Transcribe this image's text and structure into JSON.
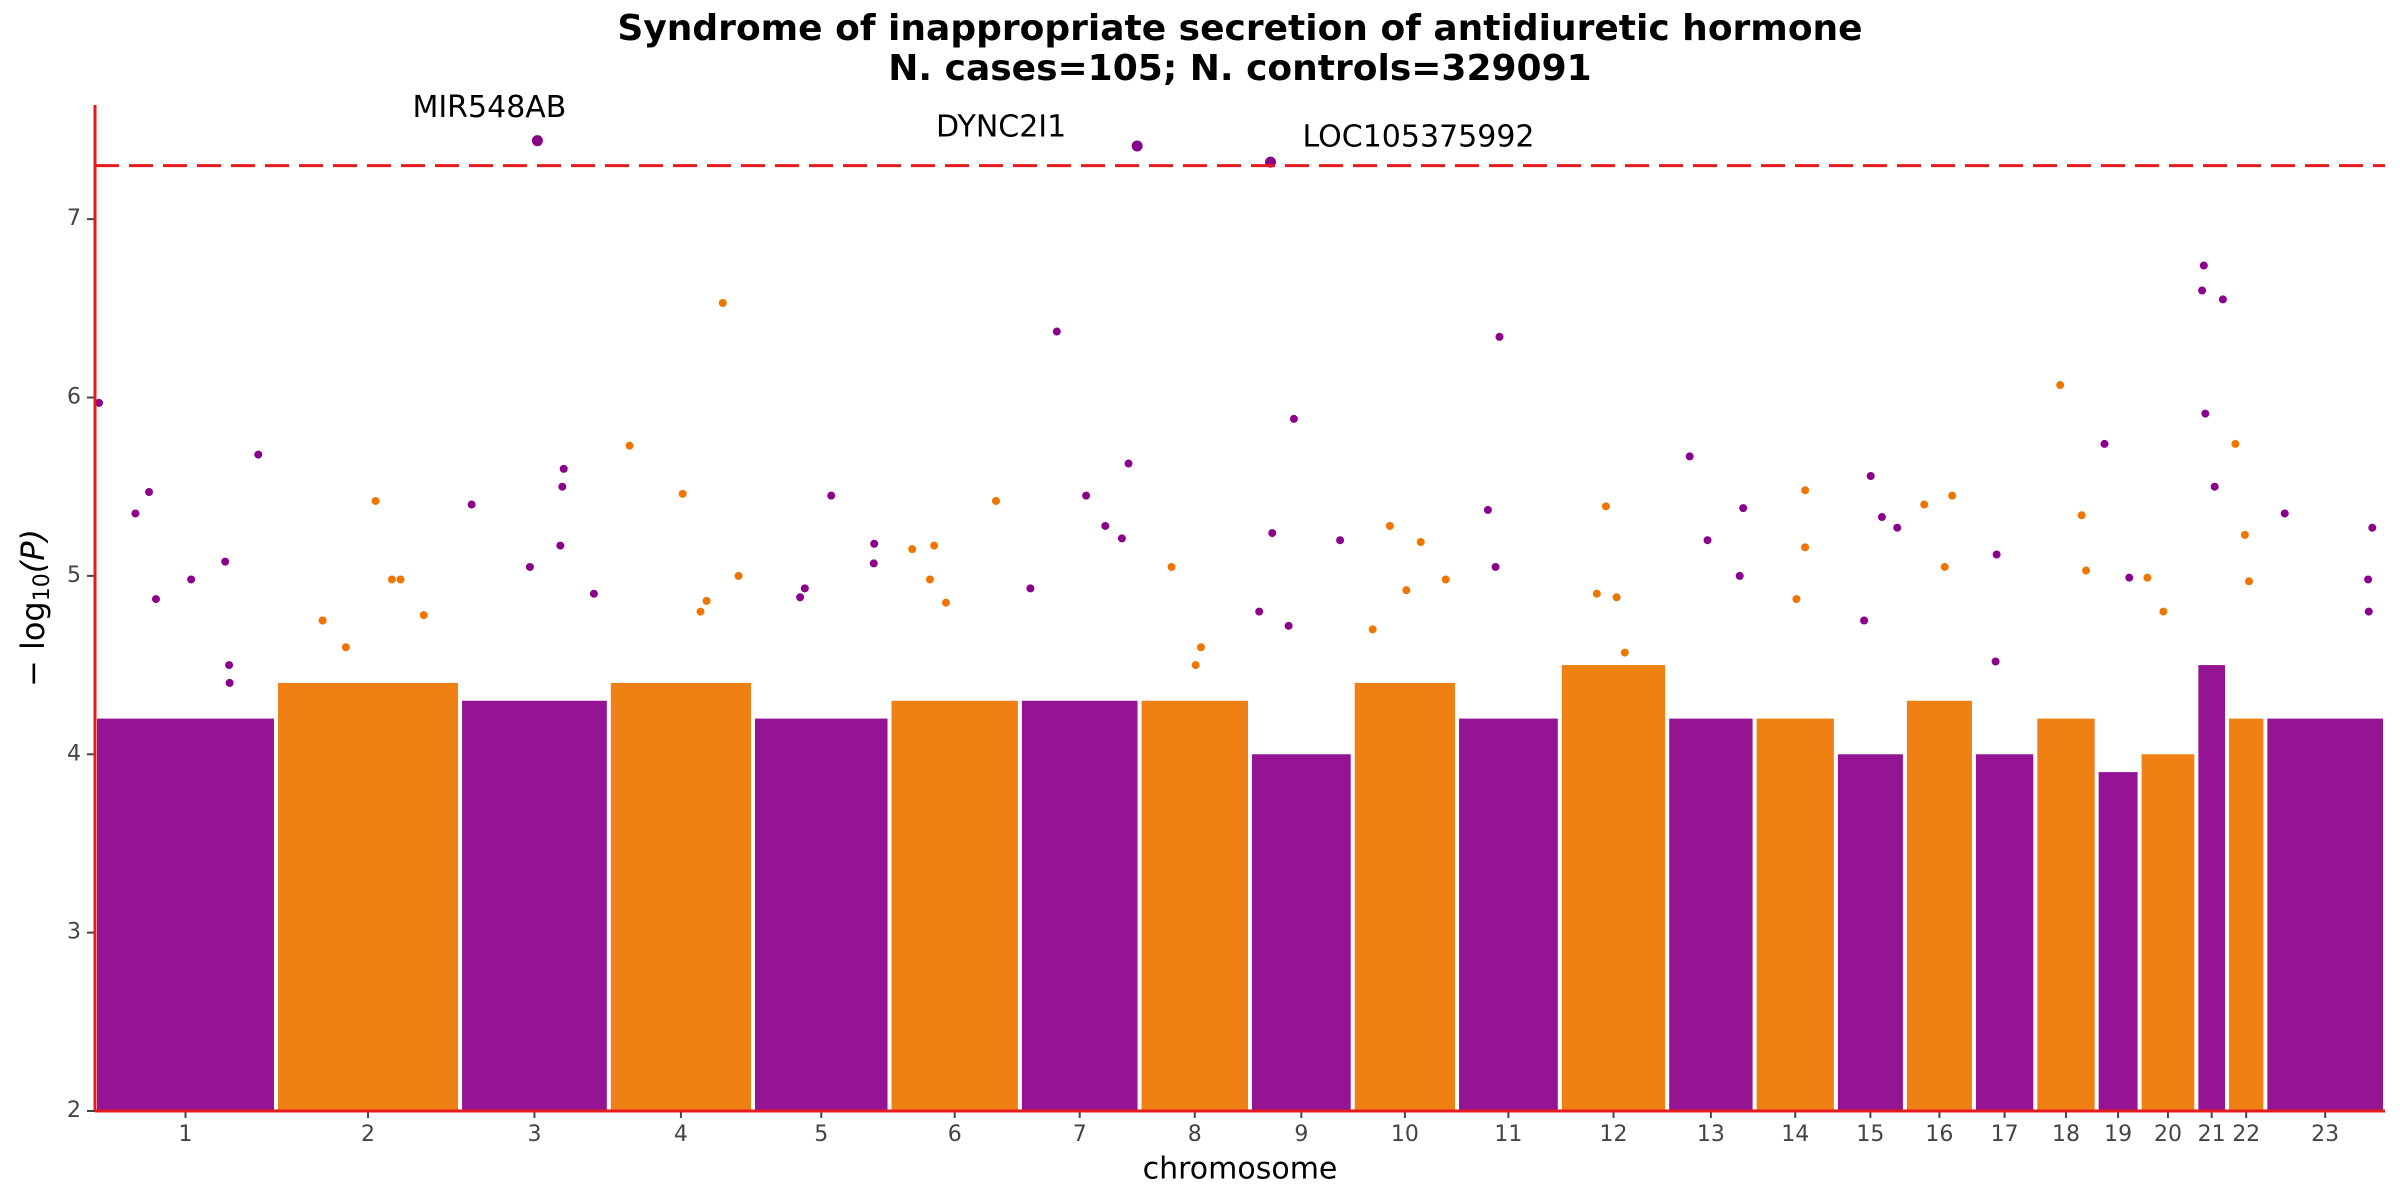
{
  "chart_data": {
    "type": "manhattan",
    "title": "Syndrome of inappropriate secretion of antidiuretic hormone",
    "subtitle": "N. cases=105; N. controls=329091",
    "xlabel": "chromosome",
    "ylabel": [
      "− log",
      "10",
      "(P)"
    ],
    "categories": [
      "1",
      "2",
      "3",
      "4",
      "5",
      "6",
      "7",
      "8",
      "9",
      "10",
      "11",
      "12",
      "13",
      "14",
      "15",
      "16",
      "17",
      "18",
      "19",
      "20",
      "21",
      "22",
      "23"
    ],
    "colors": [
      "#8b008b",
      "#ee7600"
    ],
    "bulk": [
      4.2,
      4.4,
      4.3,
      4.4,
      4.2,
      4.3,
      4.3,
      4.3,
      4.0,
      4.4,
      4.2,
      4.5,
      4.2,
      4.2,
      4.0,
      4.3,
      4.0,
      4.2,
      3.9,
      4.0,
      4.5,
      4.2,
      4.2
    ],
    "peaks": [
      [
        5.97,
        5.68,
        5.47,
        5.35,
        5.08,
        4.98,
        4.87,
        4.5,
        4.4
      ],
      [
        5.42,
        4.98,
        4.98,
        4.78,
        4.75,
        4.6
      ],
      [
        5.6,
        5.5,
        5.4,
        5.17,
        5.05,
        4.9
      ],
      [
        6.53,
        5.73,
        5.46,
        5.0,
        4.86,
        4.8
      ],
      [
        5.45,
        5.18,
        5.07,
        4.93,
        4.88
      ],
      [
        5.42,
        5.17,
        5.15,
        4.98,
        4.85
      ],
      [
        6.37,
        5.63,
        5.45,
        5.28,
        5.21,
        4.93
      ],
      [
        5.05,
        4.6,
        4.5
      ],
      [
        5.88,
        5.24,
        5.2,
        4.8,
        4.72
      ],
      [
        5.28,
        5.19,
        4.98,
        4.92,
        4.7
      ],
      [
        6.34,
        5.37,
        5.05
      ],
      [
        5.39,
        4.9,
        4.88,
        4.57
      ],
      [
        5.67,
        5.38,
        5.2,
        5.0
      ],
      [
        5.48,
        5.16,
        4.87
      ],
      [
        5.56,
        5.33,
        5.27,
        4.75
      ],
      [
        5.45,
        5.4,
        5.05
      ],
      [
        5.12,
        4.52
      ],
      [
        6.07,
        5.34,
        5.03
      ],
      [
        5.74,
        4.99
      ],
      [
        4.99,
        4.8
      ],
      [
        6.74,
        6.6,
        6.55,
        5.91,
        5.5
      ],
      [
        5.74,
        5.23,
        4.97
      ],
      [
        5.35,
        5.27,
        4.98,
        4.8
      ]
    ],
    "annotations": [
      {
        "label": "MIR548AB",
        "chromosome": "3",
        "value": 7.44
      },
      {
        "label": "DYNC2I1",
        "chromosome": "7",
        "value": 7.41
      },
      {
        "label": "LOC105375992",
        "chromosome": "9",
        "value": 7.32
      }
    ],
    "threshold": 7.3,
    "threshold_color": "#e41a1c",
    "ylim": [
      2,
      7.64
    ],
    "yticks": [
      2,
      3,
      4,
      5,
      6,
      7
    ]
  }
}
